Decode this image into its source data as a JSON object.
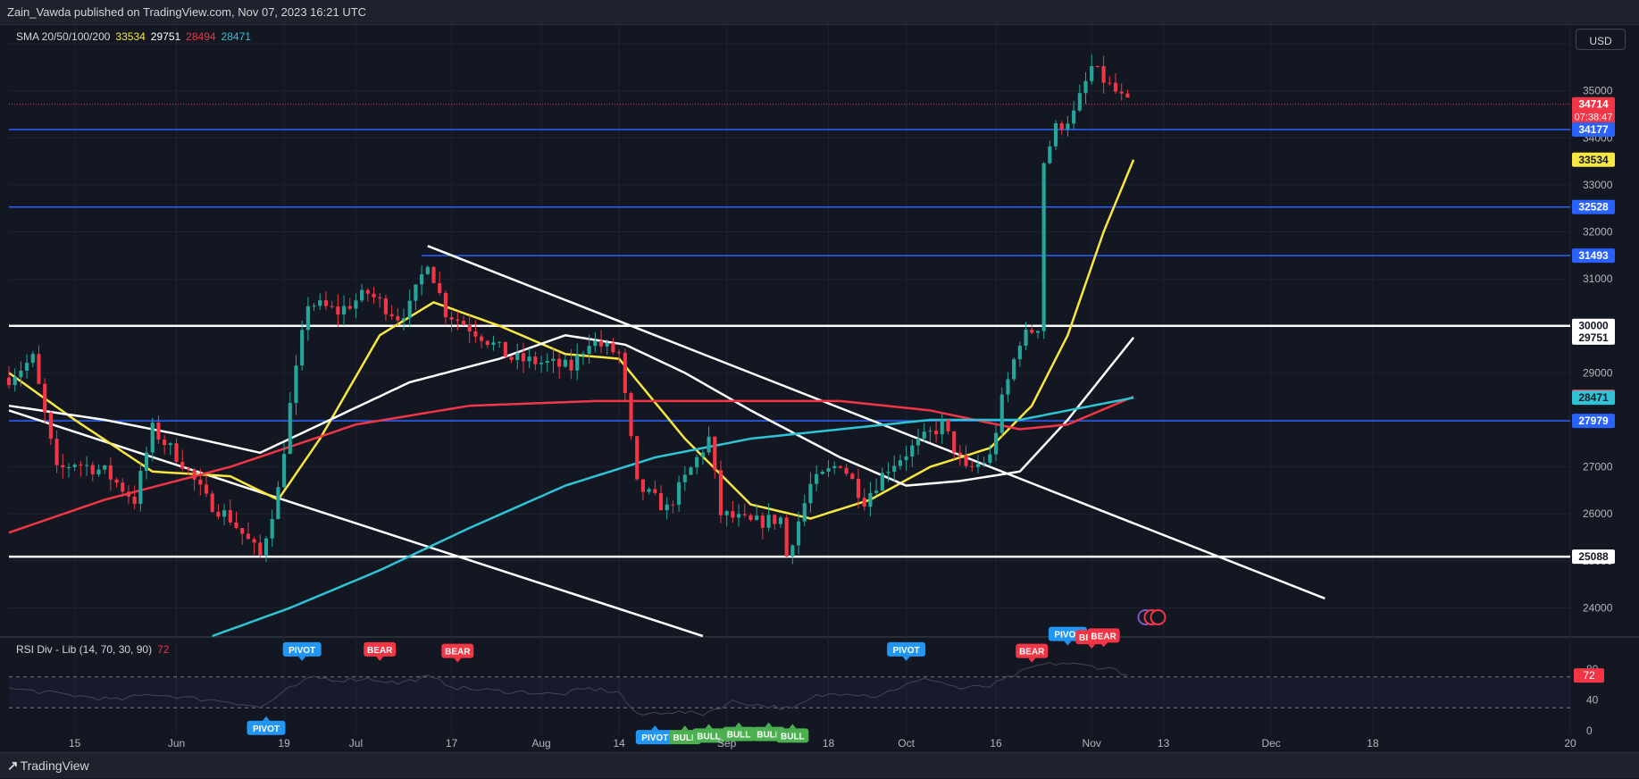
{
  "header": {
    "published": "Zain_Vawda published on TradingView.com, Nov 07, 2023 16:21 UTC"
  },
  "currency": "USD",
  "sma_legend": {
    "name": "SMA 20/50/100/200",
    "v20": "33534",
    "v50": "29751",
    "v100": "28494",
    "v200": "28471",
    "c20": "#f7e740",
    "c50": "#ffffff",
    "c100": "#f23645",
    "c200": "#2ec4d6"
  },
  "rsi_legend": {
    "name": "RSI Div - Lib (14, 70, 30, 90)",
    "value": "72"
  },
  "footer": {
    "brand": "TradingView"
  },
  "colors": {
    "up": "#26a69a",
    "down": "#f23645",
    "level_blue": "#2962ff",
    "bg": "#131722",
    "grid": "#1f2330",
    "text": "#b2b5be"
  },
  "chart_data": {
    "type": "candlestick",
    "ylim": [
      23400,
      36400
    ],
    "y_ticks": [
      24000,
      25000,
      26000,
      27000,
      28000,
      29000,
      30000,
      31000,
      32000,
      33000,
      34000,
      35000,
      36000
    ],
    "x_ticks": [
      {
        "label": "15",
        "date": "2023-05-15"
      },
      {
        "label": "Jun",
        "date": "2023-06-01"
      },
      {
        "label": "19",
        "date": "2023-06-19"
      },
      {
        "label": "Jul",
        "date": "2023-07-01"
      },
      {
        "label": "17",
        "date": "2023-07-17"
      },
      {
        "label": "Aug",
        "date": "2023-08-01"
      },
      {
        "label": "14",
        "date": "2023-08-14"
      },
      {
        "label": "Sep",
        "date": "2023-09-01"
      },
      {
        "label": "18",
        "date": "2023-09-18"
      },
      {
        "label": "Oct",
        "date": "2023-10-01"
      },
      {
        "label": "16",
        "date": "2023-10-16"
      },
      {
        "label": "Nov",
        "date": "2023-11-01"
      },
      {
        "label": "13",
        "date": "2023-11-13"
      },
      {
        "label": "Dec",
        "date": "2023-12-01"
      },
      {
        "label": "18",
        "date": "2023-12-18"
      },
      {
        "label": "20",
        "date": "2024-01-20"
      }
    ],
    "x_start": "2023-05-04",
    "x_end": "2024-01-20",
    "anchors": [
      [
        "2023-05-04",
        28900
      ],
      [
        "2023-05-08",
        29300
      ],
      [
        "2023-05-12",
        26900
      ],
      [
        "2023-05-15",
        27100
      ],
      [
        "2023-05-20",
        26900
      ],
      [
        "2023-05-25",
        26300
      ],
      [
        "2023-05-28",
        27800
      ],
      [
        "2023-06-02",
        27100
      ],
      [
        "2023-06-06",
        26300
      ],
      [
        "2023-06-10",
        25900
      ],
      [
        "2023-06-15",
        25100
      ],
      [
        "2023-06-18",
        26500
      ],
      [
        "2023-06-20",
        28300
      ],
      [
        "2023-06-23",
        30500
      ],
      [
        "2023-06-28",
        30300
      ],
      [
        "2023-07-03",
        30700
      ],
      [
        "2023-07-08",
        30200
      ],
      [
        "2023-07-10",
        30400
      ],
      [
        "2023-07-13",
        31400
      ],
      [
        "2023-07-16",
        30300
      ],
      [
        "2023-07-22",
        29800
      ],
      [
        "2023-07-27",
        29300
      ],
      [
        "2023-08-02",
        29200
      ],
      [
        "2023-08-06",
        29100
      ],
      [
        "2023-08-09",
        29700
      ],
      [
        "2023-08-14",
        29400
      ],
      [
        "2023-08-17",
        26600
      ],
      [
        "2023-08-22",
        26100
      ],
      [
        "2023-08-29",
        27600
      ],
      [
        "2023-08-31",
        26000
      ],
      [
        "2023-09-05",
        25800
      ],
      [
        "2023-09-10",
        25900
      ],
      [
        "2023-09-11",
        25100
      ],
      [
        "2023-09-15",
        26600
      ],
      [
        "2023-09-20",
        27100
      ],
      [
        "2023-09-24",
        26300
      ],
      [
        "2023-09-28",
        27000
      ],
      [
        "2023-10-03",
        27500
      ],
      [
        "2023-10-07",
        27900
      ],
      [
        "2023-10-11",
        26900
      ],
      [
        "2023-10-15",
        27200
      ],
      [
        "2023-10-17",
        28400
      ],
      [
        "2023-10-20",
        29700
      ],
      [
        "2023-10-23",
        30000
      ],
      [
        "2023-10-24",
        33500
      ],
      [
        "2023-10-26",
        34200
      ],
      [
        "2023-10-29",
        34500
      ],
      [
        "2023-11-01",
        35500
      ],
      [
        "2023-11-04",
        35100
      ],
      [
        "2023-11-07",
        34714
      ]
    ],
    "current_price": 34714,
    "countdown": "07:38:47",
    "horizontal_levels": [
      {
        "value": 34177,
        "color": "#2962ff",
        "label": "34177",
        "from": "2023-05-04"
      },
      {
        "value": 32528,
        "color": "#2962ff",
        "label": "32528",
        "from": "2023-05-04"
      },
      {
        "value": 31493,
        "color": "#2962ff",
        "label": "31493",
        "from": "2023-07-12"
      },
      {
        "value": 30000,
        "color": "#ffffff",
        "label": "30000",
        "from": "2023-05-04"
      },
      {
        "value": 27979,
        "color": "#2962ff",
        "label": "27979",
        "from": "2023-05-04"
      },
      {
        "value": 25088,
        "color": "#ffffff",
        "label": "25088",
        "from": "2023-05-04"
      }
    ],
    "trend_lines": [
      {
        "from": [
          "2023-05-04",
          28200
        ],
        "to": [
          "2023-08-28",
          23400
        ]
      },
      {
        "from": [
          "2023-07-13",
          31700
        ],
        "to": [
          "2023-12-10",
          24200
        ]
      }
    ],
    "price_labels": [
      {
        "value": 34714,
        "text": "34714",
        "bg": "#f23645",
        "fg": "#ffffff"
      },
      {
        "value": 34177,
        "text": "34177",
        "bg": "#2962ff",
        "fg": "#ffffff"
      },
      {
        "value": 33534,
        "text": "33534",
        "bg": "#f7e740",
        "fg": "#131722"
      },
      {
        "value": 32528,
        "text": "32528",
        "bg": "#2962ff",
        "fg": "#ffffff"
      },
      {
        "value": 31493,
        "text": "31493",
        "bg": "#2962ff",
        "fg": "#ffffff"
      },
      {
        "value": 30000,
        "text": "30000",
        "bg": "#ffffff",
        "fg": "#131722"
      },
      {
        "value": 29751,
        "text": "29751",
        "bg": "#ffffff",
        "fg": "#131722"
      },
      {
        "value": 28494,
        "text": "28494",
        "bg": "#f23645",
        "fg": "#ffffff"
      },
      {
        "value": 28471,
        "text": "28471",
        "bg": "#2ec4d6",
        "fg": "#131722"
      },
      {
        "value": 27979,
        "text": "27979",
        "bg": "#2962ff",
        "fg": "#ffffff"
      },
      {
        "value": 25088,
        "text": "25088",
        "bg": "#ffffff",
        "fg": "#131722"
      }
    ],
    "sma": [
      {
        "name": "SMA 20",
        "color": "#f7e740",
        "points": [
          [
            "2023-05-04",
            29000
          ],
          [
            "2023-05-15",
            28000
          ],
          [
            "2023-05-28",
            26900
          ],
          [
            "2023-06-10",
            26800
          ],
          [
            "2023-06-18",
            26300
          ],
          [
            "2023-06-25",
            27600
          ],
          [
            "2023-07-05",
            29800
          ],
          [
            "2023-07-14",
            30500
          ],
          [
            "2023-07-25",
            30000
          ],
          [
            "2023-08-05",
            29400
          ],
          [
            "2023-08-14",
            29300
          ],
          [
            "2023-08-25",
            27600
          ],
          [
            "2023-09-05",
            26200
          ],
          [
            "2023-09-15",
            25900
          ],
          [
            "2023-09-25",
            26300
          ],
          [
            "2023-10-05",
            27000
          ],
          [
            "2023-10-15",
            27400
          ],
          [
            "2023-10-22",
            28300
          ],
          [
            "2023-10-28",
            29800
          ],
          [
            "2023-11-03",
            32000
          ],
          [
            "2023-11-08",
            33534
          ]
        ]
      },
      {
        "name": "SMA 50",
        "color": "#ffffff",
        "points": [
          [
            "2023-05-04",
            28300
          ],
          [
            "2023-05-20",
            28000
          ],
          [
            "2023-06-01",
            27700
          ],
          [
            "2023-06-15",
            27300
          ],
          [
            "2023-06-25",
            27900
          ],
          [
            "2023-07-10",
            28800
          ],
          [
            "2023-07-25",
            29300
          ],
          [
            "2023-08-05",
            29800
          ],
          [
            "2023-08-15",
            29600
          ],
          [
            "2023-08-25",
            29000
          ],
          [
            "2023-09-05",
            28200
          ],
          [
            "2023-09-20",
            27200
          ],
          [
            "2023-10-01",
            26600
          ],
          [
            "2023-10-10",
            26700
          ],
          [
            "2023-10-20",
            26900
          ],
          [
            "2023-10-28",
            28000
          ],
          [
            "2023-11-08",
            29751
          ]
        ]
      },
      {
        "name": "SMA 100",
        "color": "#f23645",
        "points": [
          [
            "2023-05-04",
            25600
          ],
          [
            "2023-05-20",
            26300
          ],
          [
            "2023-06-10",
            27000
          ],
          [
            "2023-07-01",
            27900
          ],
          [
            "2023-07-20",
            28300
          ],
          [
            "2023-08-10",
            28400
          ],
          [
            "2023-08-30",
            28400
          ],
          [
            "2023-09-20",
            28400
          ],
          [
            "2023-10-05",
            28200
          ],
          [
            "2023-10-20",
            27800
          ],
          [
            "2023-10-28",
            27900
          ],
          [
            "2023-11-08",
            28494
          ]
        ]
      },
      {
        "name": "SMA 200",
        "color": "#2ec4d6",
        "points": [
          [
            "2023-06-07",
            23400
          ],
          [
            "2023-06-20",
            24000
          ],
          [
            "2023-07-05",
            24800
          ],
          [
            "2023-07-20",
            25700
          ],
          [
            "2023-08-05",
            26600
          ],
          [
            "2023-08-20",
            27200
          ],
          [
            "2023-09-05",
            27600
          ],
          [
            "2023-09-20",
            27800
          ],
          [
            "2023-10-05",
            28000
          ],
          [
            "2023-10-20",
            28000
          ],
          [
            "2023-11-08",
            28471
          ]
        ]
      }
    ],
    "rsi": {
      "ylim": [
        0,
        100
      ],
      "y_ticks": [
        0,
        40,
        80
      ],
      "overbought": 70,
      "oversold": 30,
      "current": 72,
      "points": [
        [
          "2023-05-04",
          55
        ],
        [
          "2023-05-10",
          50
        ],
        [
          "2023-05-16",
          45
        ],
        [
          "2023-05-22",
          40
        ],
        [
          "2023-05-28",
          48
        ],
        [
          "2023-06-04",
          42
        ],
        [
          "2023-06-10",
          38
        ],
        [
          "2023-06-15",
          30
        ],
        [
          "2023-06-20",
          55
        ],
        [
          "2023-06-24",
          70
        ],
        [
          "2023-06-28",
          66
        ],
        [
          "2023-07-03",
          68
        ],
        [
          "2023-07-08",
          62
        ],
        [
          "2023-07-13",
          70
        ],
        [
          "2023-07-18",
          56
        ],
        [
          "2023-07-24",
          52
        ],
        [
          "2023-07-30",
          50
        ],
        [
          "2023-08-04",
          47
        ],
        [
          "2023-08-09",
          55
        ],
        [
          "2023-08-14",
          50
        ],
        [
          "2023-08-17",
          20
        ],
        [
          "2023-08-22",
          25
        ],
        [
          "2023-08-28",
          22
        ],
        [
          "2023-09-02",
          38
        ],
        [
          "2023-09-07",
          33
        ],
        [
          "2023-09-12",
          28
        ],
        [
          "2023-09-16",
          45
        ],
        [
          "2023-09-21",
          50
        ],
        [
          "2023-09-26",
          45
        ],
        [
          "2023-10-01",
          60
        ],
        [
          "2023-10-05",
          68
        ],
        [
          "2023-10-10",
          55
        ],
        [
          "2023-10-15",
          58
        ],
        [
          "2023-10-19",
          72
        ],
        [
          "2023-10-23",
          85
        ],
        [
          "2023-10-27",
          88
        ],
        [
          "2023-11-01",
          84
        ],
        [
          "2023-11-05",
          80
        ],
        [
          "2023-11-07",
          72
        ]
      ]
    },
    "signals": [
      {
        "text": "PIVOT",
        "date": "2023-06-16",
        "rsi": 20,
        "side": "below",
        "color": "#2196f3"
      },
      {
        "text": "PIVOT",
        "date": "2023-06-22",
        "rsi": 92,
        "side": "above",
        "color": "#2196f3"
      },
      {
        "text": "BEAR",
        "date": "2023-07-05",
        "rsi": 92,
        "side": "above",
        "color": "#f23645"
      },
      {
        "text": "BEAR",
        "date": "2023-07-18",
        "rsi": 90,
        "side": "above",
        "color": "#f23645"
      },
      {
        "text": "PIVOT",
        "date": "2023-08-20",
        "rsi": 8,
        "side": "below",
        "color": "#2196f3"
      },
      {
        "text": "BULL",
        "date": "2023-08-25",
        "rsi": 8,
        "side": "below",
        "color": "#4caf50"
      },
      {
        "text": "BULL",
        "date": "2023-08-29",
        "rsi": 10,
        "side": "below",
        "color": "#4caf50"
      },
      {
        "text": "BULL",
        "date": "2023-09-03",
        "rsi": 12,
        "side": "below",
        "color": "#4caf50"
      },
      {
        "text": "BULL",
        "date": "2023-09-08",
        "rsi": 12,
        "side": "below",
        "color": "#4caf50"
      },
      {
        "text": "BULL",
        "date": "2023-09-12",
        "rsi": 10,
        "side": "below",
        "color": "#4caf50"
      },
      {
        "text": "PIVOT",
        "date": "2023-10-01",
        "rsi": 92,
        "side": "above",
        "color": "#2196f3"
      },
      {
        "text": "BEAR",
        "date": "2023-10-22",
        "rsi": 90,
        "side": "above",
        "color": "#f23645"
      },
      {
        "text": "PIVOT",
        "date": "2023-10-28",
        "rsi": 112,
        "side": "above",
        "color": "#2196f3"
      },
      {
        "text": "BEAR",
        "date": "2023-11-01",
        "rsi": 108,
        "side": "above",
        "color": "#f23645"
      },
      {
        "text": "BEAR",
        "date": "2023-11-03",
        "rsi": 110,
        "side": "above",
        "color": "#f23645"
      }
    ]
  }
}
